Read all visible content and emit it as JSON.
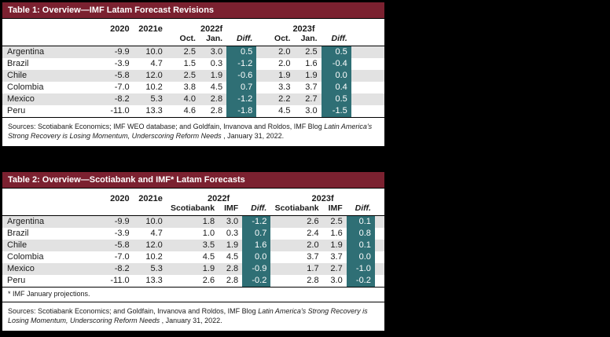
{
  "colors": {
    "page-bg": "#000000",
    "card-bg": "#ffffff",
    "border": "#000000",
    "text": "#1a1a1a",
    "title-bar-bg": "#7b2130",
    "title-bar-text": "#ffffff",
    "diff-bg": "#2f6f75",
    "diff-text": "#ffffff",
    "stripe": "#e2e2e2"
  },
  "chart_data": [
    {
      "type": "table",
      "title": "Table 1: Overview—IMF Latam Forecast Revisions",
      "year_columns": [
        "2020",
        "2021e"
      ],
      "groups": [
        {
          "label": "2022f",
          "sub_columns": [
            "Oct.",
            "Jan.",
            "Diff."
          ]
        },
        {
          "label": "2023f",
          "sub_columns": [
            "Oct.",
            "Jan.",
            "Diff."
          ]
        }
      ],
      "rows": [
        {
          "country": "Argentina",
          "values": [
            "-9.9",
            "10.0",
            "2.5",
            "3.0",
            "0.5",
            "2.0",
            "2.5",
            "0.5"
          ]
        },
        {
          "country": "Brazil",
          "values": [
            "-3.9",
            "4.7",
            "1.5",
            "0.3",
            "-1.2",
            "2.0",
            "1.6",
            "-0.4"
          ]
        },
        {
          "country": "Chile",
          "values": [
            "-5.8",
            "12.0",
            "2.5",
            "1.9",
            "-0.6",
            "1.9",
            "1.9",
            "0.0"
          ]
        },
        {
          "country": "Colombia",
          "values": [
            "-7.0",
            "10.2",
            "3.8",
            "4.5",
            "0.7",
            "3.3",
            "3.7",
            "0.4"
          ]
        },
        {
          "country": "Mexico",
          "values": [
            "-8.2",
            "5.3",
            "4.0",
            "2.8",
            "-1.2",
            "2.2",
            "2.7",
            "0.5"
          ]
        },
        {
          "country": "Peru",
          "values": [
            "-11.0",
            "13.3",
            "4.6",
            "2.8",
            "-1.8",
            "4.5",
            "3.0",
            "-1.5"
          ]
        }
      ],
      "source_prefix": "Sources: Scotiabank Economics; IMF WEO database; and Goldfain, Invanova and Roldos, IMF Blog ",
      "source_italic": "Latin America's Strong Recovery is Losing Momentum, Underscoring Reform Needs",
      "source_suffix": " , January 31, 2022."
    },
    {
      "type": "table",
      "title": "Table 2: Overview—Scotiabank and IMF* Latam Forecasts",
      "year_columns": [
        "2020",
        "2021e"
      ],
      "groups": [
        {
          "label": "2022f",
          "sub_columns": [
            "Scotiabank",
            "IMF",
            "Diff."
          ]
        },
        {
          "label": "2023f",
          "sub_columns": [
            "Scotiabank",
            "IMF",
            "Diff."
          ]
        }
      ],
      "rows": [
        {
          "country": "Argentina",
          "values": [
            "-9.9",
            "10.0",
            "1.8",
            "3.0",
            "-1.2",
            "2.6",
            "2.5",
            "0.1"
          ]
        },
        {
          "country": "Brazil",
          "values": [
            "-3.9",
            "4.7",
            "1.0",
            "0.3",
            "0.7",
            "2.4",
            "1.6",
            "0.8"
          ]
        },
        {
          "country": "Chile",
          "values": [
            "-5.8",
            "12.0",
            "3.5",
            "1.9",
            "1.6",
            "2.0",
            "1.9",
            "0.1"
          ]
        },
        {
          "country": "Colombia",
          "values": [
            "-7.0",
            "10.2",
            "4.5",
            "4.5",
            "0.0",
            "3.7",
            "3.7",
            "0.0"
          ]
        },
        {
          "country": "Mexico",
          "values": [
            "-8.2",
            "5.3",
            "1.9",
            "2.8",
            "-0.9",
            "1.7",
            "2.7",
            "-1.0"
          ]
        },
        {
          "country": "Peru",
          "values": [
            "-11.0",
            "13.3",
            "2.6",
            "2.8",
            "-0.2",
            "2.8",
            "3.0",
            "-0.2"
          ]
        }
      ],
      "footnote": "* IMF January projections.",
      "source_prefix": "Sources: Scotiabank Economics; and Goldfain, Invanova and Roldos, IMF Blog ",
      "source_italic": "Latin America's Strong Recovery is Losing Momentum, Underscoring Reform Needs",
      "source_suffix": " , January 31, 2022."
    }
  ]
}
